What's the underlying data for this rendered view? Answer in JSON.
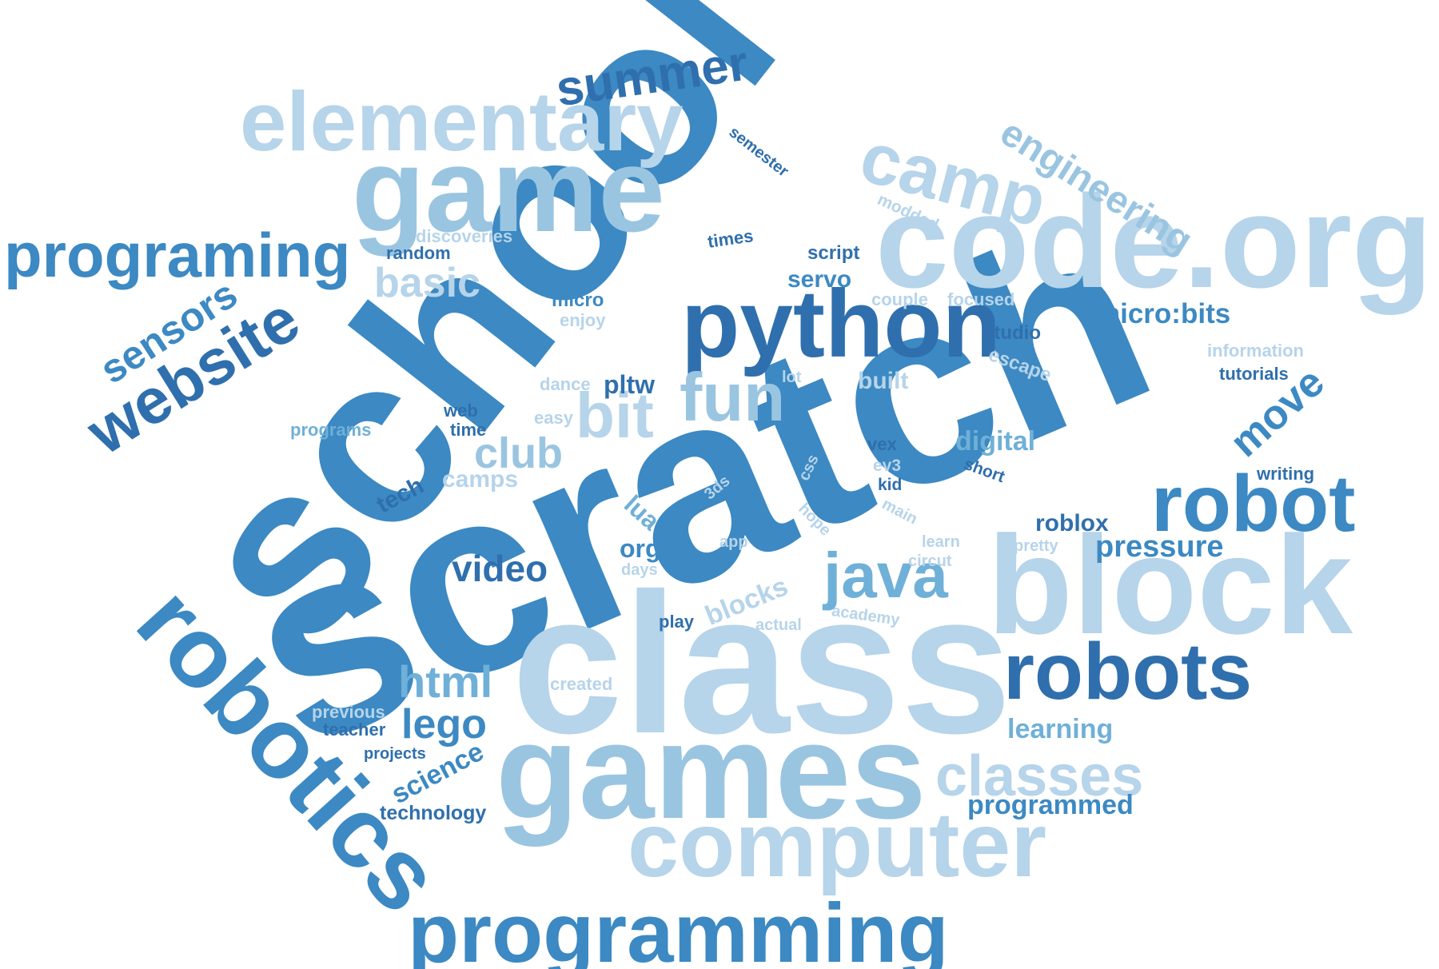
{
  "palette": {
    "c1": "#3c89c3",
    "c2": "#2f6fad",
    "c3": "#6fb0d8",
    "c4": "#9ac5e1",
    "c5": "#b6d4ea"
  },
  "words": {
    "scratch": "scratch",
    "school": "school",
    "class": "class",
    "games": "games",
    "code_org": "code.org",
    "block": "block",
    "game": "game",
    "python": "python",
    "elementary": "elementary",
    "robotics": "robotics",
    "computer": "computer",
    "programming": "programming",
    "robot": "robot",
    "robots": "robots",
    "camp": "camp",
    "programing": "programing",
    "website": "website",
    "summer": "summer",
    "fun": "fun",
    "bit": "bit",
    "java": "java",
    "classes": "classes",
    "engineering": "engineering",
    "sensors": "sensors",
    "move": "move",
    "basic": "basic",
    "club": "club",
    "html": "html",
    "lego": "lego",
    "video": "video",
    "blocks": "blocks",
    "pressure": "pressure",
    "micro_bits": "micro:bits",
    "programmed": "programmed",
    "learning": "learning",
    "science": "science",
    "technology": "technology",
    "roblox": "roblox",
    "digital": "digital",
    "servo": "servo",
    "pltw": "pltw",
    "lua": "lua",
    "org": "org",
    "tech": "tech",
    "camps": "camps",
    "built": "built",
    "studio": "studio",
    "information": "information",
    "tutorials": "tutorials",
    "escape": "escape",
    "writing": "writing",
    "semester": "semester",
    "modded": "modded",
    "discoveries": "discoveries",
    "random": "random",
    "times": "times",
    "script": "script",
    "couple": "couple",
    "focused": "focused",
    "micro": "micro",
    "enjoy": "enjoy",
    "dance": "dance",
    "lot": "lot",
    "web": "web",
    "time": "time",
    "easy": "easy",
    "programs": "programs",
    "css": "css",
    "ev3": "ev3",
    "vex": "vex",
    "kid": "kid",
    "short": "short",
    "main": "main",
    "hope": "hope",
    "3ds": "3ds",
    "app": "app",
    "learn": "learn",
    "circut": "circut",
    "pretty": "pretty",
    "days": "days",
    "play": "play",
    "actual": "actual",
    "academy": "academy",
    "created": "created",
    "previous": "previous",
    "teacher": "teacher",
    "projects": "projects"
  }
}
